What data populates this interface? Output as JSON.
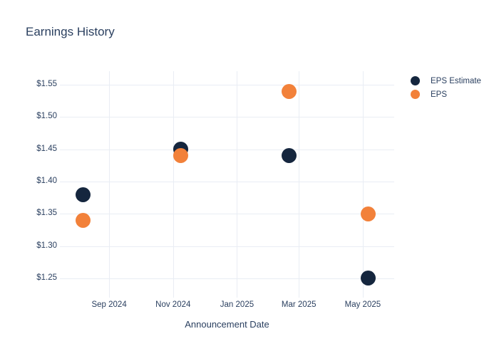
{
  "chart_data": {
    "type": "scatter",
    "title": "Earnings History",
    "xlabel": "Announcement Date",
    "ylabel": "",
    "grid": true,
    "legend_position": "right-top",
    "ylim": [
      1.22,
      1.571
    ],
    "xlim": [
      "2024-07-16",
      "2025-05-31"
    ],
    "y_ticks": [
      1.25,
      1.3,
      1.35,
      1.4,
      1.45,
      1.5,
      1.55
    ],
    "y_tick_prefix": "$",
    "x_ticks": [
      {
        "date": "2024-09-01",
        "label": "Sep 2024"
      },
      {
        "date": "2024-11-01",
        "label": "Nov 2024"
      },
      {
        "date": "2025-01-01",
        "label": "Jan 2025"
      },
      {
        "date": "2025-03-01",
        "label": "Mar 2025"
      },
      {
        "date": "2025-05-01",
        "label": "May 2025"
      }
    ],
    "series": [
      {
        "name": "EPS Estimate",
        "color": "#15263e",
        "points": [
          {
            "date": "2024-08-07",
            "value": 1.38
          },
          {
            "date": "2024-11-08",
            "value": 1.45
          },
          {
            "date": "2025-02-20",
            "value": 1.44
          },
          {
            "date": "2025-05-06",
            "value": 1.25
          }
        ]
      },
      {
        "name": "EPS",
        "color": "#f2813a",
        "points": [
          {
            "date": "2024-08-07",
            "value": 1.34
          },
          {
            "date": "2024-11-08",
            "value": 1.44
          },
          {
            "date": "2025-02-20",
            "value": 1.54
          },
          {
            "date": "2025-05-06",
            "value": 1.35
          }
        ]
      }
    ],
    "marker_diameter_px": 21,
    "legend_marker_diameter_px": 13
  },
  "colors": {
    "background": "#ffffff",
    "title_text": "#2a3f5f",
    "tick_text": "#2a3f5f",
    "gridline": "#e9edf4",
    "eps_estimate": "#15263e",
    "eps": "#f2813a"
  }
}
